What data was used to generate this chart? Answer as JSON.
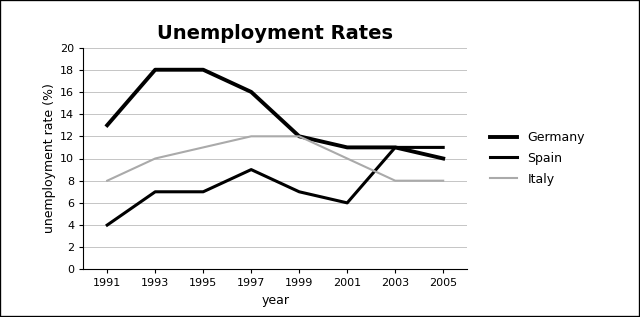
{
  "title": "Unemployment Rates",
  "xlabel": "year",
  "ylabel": "unemployment rate (%)",
  "years": [
    1991,
    1993,
    1995,
    1997,
    1999,
    2001,
    2003,
    2005
  ],
  "series": {
    "Spain": {
      "values": [
        4,
        7,
        7,
        9,
        7,
        6,
        11,
        11
      ],
      "color": "#000000",
      "linewidth": 2.2,
      "linestyle": "-"
    },
    "Germany": {
      "values": [
        13,
        18,
        18,
        16,
        12,
        11,
        11,
        10
      ],
      "color": "#000000",
      "linewidth": 2.8,
      "linestyle": "-"
    },
    "Italy": {
      "values": [
        8,
        10,
        11,
        12,
        12,
        10,
        8,
        8
      ],
      "color": "#aaaaaa",
      "linewidth": 1.5,
      "linestyle": "-"
    }
  },
  "ylim": [
    0,
    20
  ],
  "yticks": [
    0,
    2,
    4,
    6,
    8,
    10,
    12,
    14,
    16,
    18,
    20
  ],
  "xticks": [
    1991,
    1993,
    1995,
    1997,
    1999,
    2001,
    2003,
    2005
  ],
  "xlim": [
    1990,
    2006
  ],
  "background_color": "#ffffff",
  "grid_color": "#bbbbbb",
  "title_fontsize": 14,
  "label_fontsize": 9,
  "tick_fontsize": 8,
  "legend_fontsize": 9,
  "border_color": "#000000"
}
